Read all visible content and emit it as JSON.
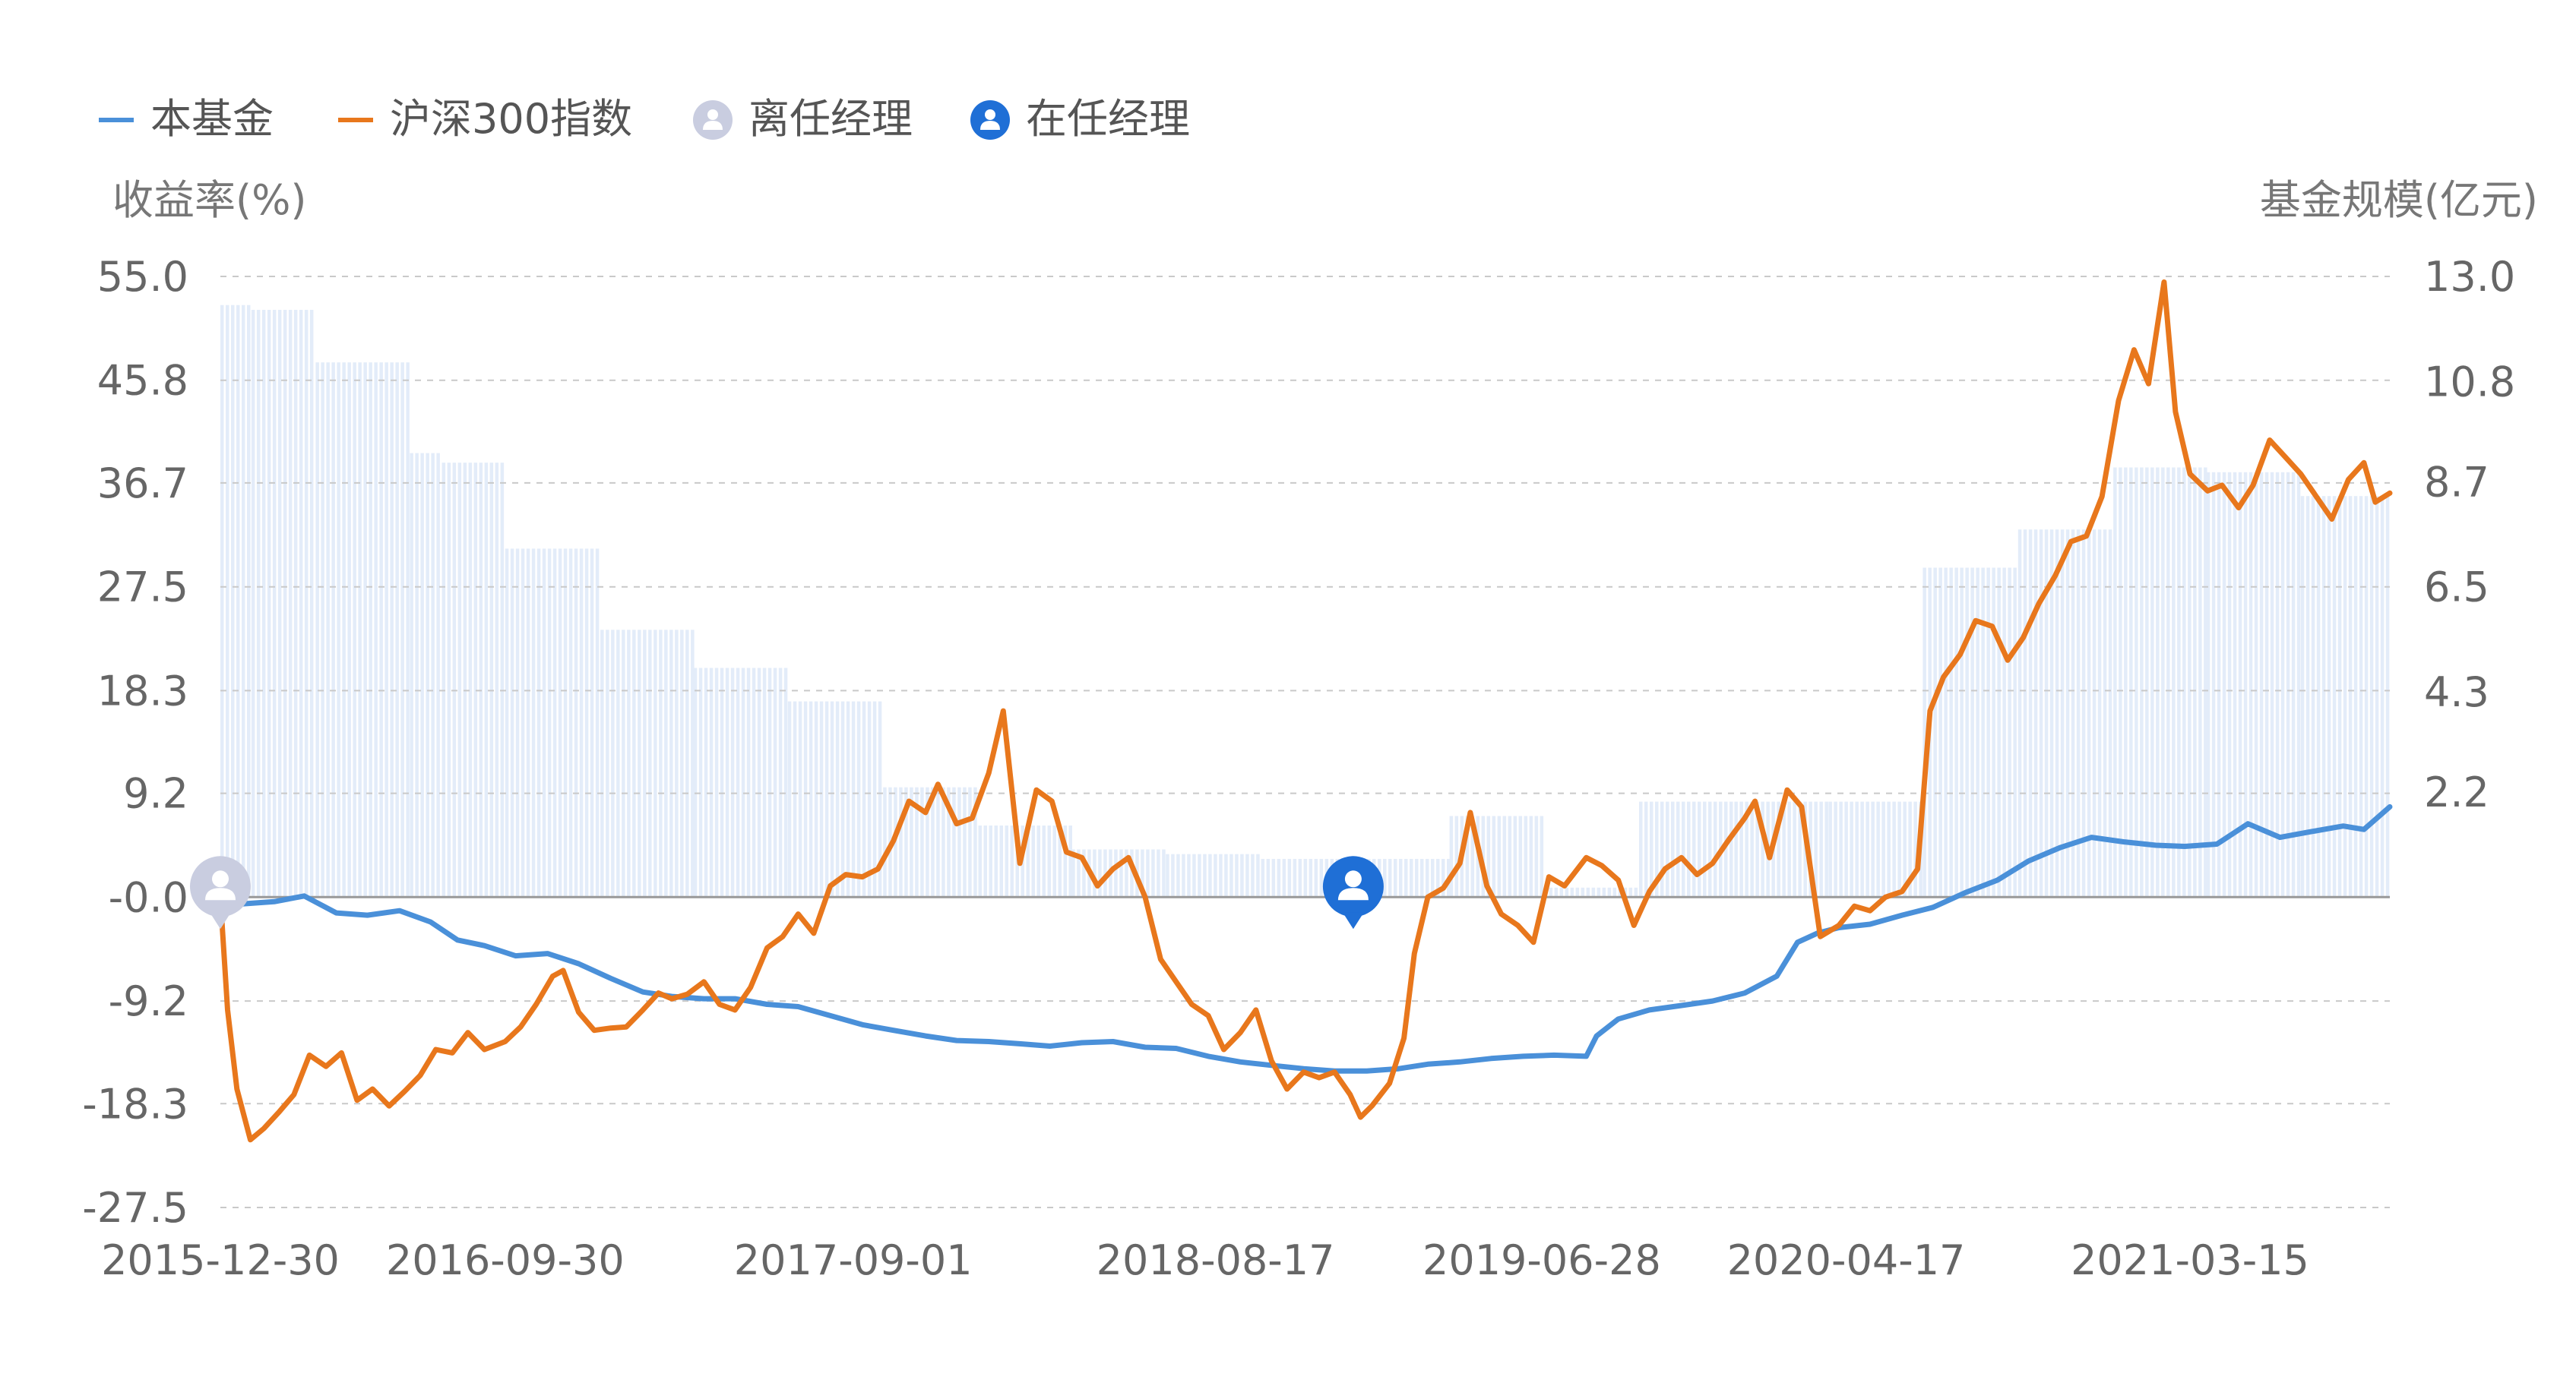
{
  "legend": {
    "fund": "本基金",
    "index": "沪深300指数",
    "former_manager": "离任经理",
    "current_manager": "在任经理"
  },
  "axes": {
    "left_title": "收益率(%)",
    "right_title": "基金规模(亿元)"
  },
  "colors": {
    "fund": "#4a90d9",
    "index": "#e8771c",
    "scale_bar": "#e3ecf9",
    "grid": "#c9c9c9",
    "text": "#666666",
    "former_manager": "#c9cde0",
    "current_manager": "#1f6fd6"
  },
  "chart_data": {
    "type": "line",
    "title": "",
    "x_ticks": [
      "2015-12-30",
      "2016-09-30",
      "2017-09-01",
      "2018-08-17",
      "2019-06-28",
      "2020-04-17",
      "2021-03-15"
    ],
    "x_range": [
      "2015-12-30",
      "2021-09-24"
    ],
    "y_left": {
      "label": "收益率(%)",
      "range": [
        -27.5,
        55.0
      ],
      "ticks": [
        "55.0",
        "45.8",
        "36.7",
        "27.5",
        "18.3",
        "9.2",
        "-0.0",
        "-9.2",
        "-18.3",
        "-27.5"
      ]
    },
    "y_right": {
      "label": "基金规模(亿元)",
      "range": [
        0,
        13.0
      ],
      "ticks": [
        "13.0",
        "10.8",
        "8.7",
        "6.5",
        "4.3",
        "2.2"
      ]
    },
    "grid": true,
    "legend_position": "top-left",
    "series": [
      {
        "name": "本基金",
        "axis": "left",
        "points": [
          [
            "2015-12-30",
            0.0
          ],
          [
            "2016-01-20",
            -0.6
          ],
          [
            "2016-02-20",
            -0.4
          ],
          [
            "2016-03-20",
            0.1
          ],
          [
            "2016-04-20",
            -1.4
          ],
          [
            "2016-05-20",
            -1.6
          ],
          [
            "2016-06-20",
            -1.2
          ],
          [
            "2016-07-20",
            -2.2
          ],
          [
            "2016-08-15",
            -3.8
          ],
          [
            "2016-09-10",
            -4.3
          ],
          [
            "2016-10-10",
            -5.2
          ],
          [
            "2016-11-10",
            -5.0
          ],
          [
            "2016-12-10",
            -5.9
          ],
          [
            "2017-01-10",
            -7.2
          ],
          [
            "2017-02-10",
            -8.4
          ],
          [
            "2017-03-10",
            -8.8
          ],
          [
            "2017-04-10",
            -9.0
          ],
          [
            "2017-05-10",
            -9.0
          ],
          [
            "2017-06-10",
            -9.5
          ],
          [
            "2017-07-10",
            -9.7
          ],
          [
            "2017-08-10",
            -10.5
          ],
          [
            "2017-09-10",
            -11.3
          ],
          [
            "2017-10-10",
            -11.8
          ],
          [
            "2017-11-10",
            -12.3
          ],
          [
            "2017-12-10",
            -12.7
          ],
          [
            "2018-01-10",
            -12.8
          ],
          [
            "2018-02-10",
            -13.0
          ],
          [
            "2018-03-10",
            -13.2
          ],
          [
            "2018-04-10",
            -12.9
          ],
          [
            "2018-05-10",
            -12.8
          ],
          [
            "2018-06-10",
            -13.3
          ],
          [
            "2018-07-10",
            -13.4
          ],
          [
            "2018-08-10",
            -14.1
          ],
          [
            "2018-09-10",
            -14.6
          ],
          [
            "2018-10-10",
            -14.9
          ],
          [
            "2018-11-10",
            -15.2
          ],
          [
            "2018-12-10",
            -15.4
          ],
          [
            "2019-01-10",
            -15.4
          ],
          [
            "2019-02-10",
            -15.2
          ],
          [
            "2019-03-10",
            -14.8
          ],
          [
            "2019-04-10",
            -14.6
          ],
          [
            "2019-05-10",
            -14.3
          ],
          [
            "2019-06-10",
            -14.1
          ],
          [
            "2019-07-10",
            -14.0
          ],
          [
            "2019-08-10",
            -14.1
          ],
          [
            "2019-08-20",
            -12.3
          ],
          [
            "2019-09-10",
            -10.8
          ],
          [
            "2019-10-10",
            -10.0
          ],
          [
            "2019-11-10",
            -9.6
          ],
          [
            "2019-12-10",
            -9.2
          ],
          [
            "2020-01-10",
            -8.5
          ],
          [
            "2020-02-10",
            -7.0
          ],
          [
            "2020-03-01",
            -4.0
          ],
          [
            "2020-03-20",
            -3.2
          ],
          [
            "2020-04-10",
            -2.7
          ],
          [
            "2020-05-10",
            -2.4
          ],
          [
            "2020-06-10",
            -1.6
          ],
          [
            "2020-07-10",
            -0.9
          ],
          [
            "2020-08-10",
            0.4
          ],
          [
            "2020-09-10",
            1.5
          ],
          [
            "2020-10-10",
            3.2
          ],
          [
            "2020-11-10",
            4.4
          ],
          [
            "2020-12-10",
            5.3
          ],
          [
            "2021-01-10",
            4.9
          ],
          [
            "2021-02-10",
            4.6
          ],
          [
            "2021-03-10",
            4.5
          ],
          [
            "2021-04-10",
            4.7
          ],
          [
            "2021-05-10",
            6.5
          ],
          [
            "2021-06-10",
            5.3
          ],
          [
            "2021-07-10",
            5.8
          ],
          [
            "2021-08-10",
            6.3
          ],
          [
            "2021-08-30",
            6.0
          ],
          [
            "2021-09-24",
            8.0
          ]
        ]
      },
      {
        "name": "沪深300指数",
        "axis": "left",
        "points": [
          [
            "2015-12-30",
            0.0
          ],
          [
            "2016-01-06",
            -10.0
          ],
          [
            "2016-01-15",
            -17.0
          ],
          [
            "2016-01-28",
            -21.5
          ],
          [
            "2016-02-10",
            -20.5
          ],
          [
            "2016-02-25",
            -19.0
          ],
          [
            "2016-03-10",
            -17.5
          ],
          [
            "2016-03-25",
            -14.0
          ],
          [
            "2016-04-10",
            -15.0
          ],
          [
            "2016-04-25",
            -13.8
          ],
          [
            "2016-05-10",
            -18.0
          ],
          [
            "2016-05-25",
            -17.0
          ],
          [
            "2016-06-10",
            -18.5
          ],
          [
            "2016-06-25",
            -17.2
          ],
          [
            "2016-07-10",
            -15.8
          ],
          [
            "2016-07-25",
            -13.5
          ],
          [
            "2016-08-10",
            -13.8
          ],
          [
            "2016-08-25",
            -12.0
          ],
          [
            "2016-09-10",
            -13.5
          ],
          [
            "2016-09-30",
            -12.8
          ],
          [
            "2016-10-15",
            -11.5
          ],
          [
            "2016-10-30",
            -9.5
          ],
          [
            "2016-11-15",
            -7.0
          ],
          [
            "2016-11-25",
            -6.5
          ],
          [
            "2016-12-10",
            -10.2
          ],
          [
            "2016-12-25",
            -11.8
          ],
          [
            "2017-01-10",
            -11.6
          ],
          [
            "2017-01-25",
            -11.5
          ],
          [
            "2017-02-10",
            -10.0
          ],
          [
            "2017-02-25",
            -8.5
          ],
          [
            "2017-03-10",
            -9.0
          ],
          [
            "2017-03-25",
            -8.6
          ],
          [
            "2017-04-10",
            -7.5
          ],
          [
            "2017-04-25",
            -9.5
          ],
          [
            "2017-05-10",
            -10.0
          ],
          [
            "2017-05-25",
            -8.0
          ],
          [
            "2017-06-10",
            -4.5
          ],
          [
            "2017-06-25",
            -3.5
          ],
          [
            "2017-07-10",
            -1.5
          ],
          [
            "2017-07-25",
            -3.2
          ],
          [
            "2017-08-10",
            1.0
          ],
          [
            "2017-08-25",
            2.0
          ],
          [
            "2017-09-10",
            1.8
          ],
          [
            "2017-09-25",
            2.5
          ],
          [
            "2017-10-10",
            5.0
          ],
          [
            "2017-10-25",
            8.5
          ],
          [
            "2017-11-10",
            7.5
          ],
          [
            "2017-11-22",
            10.0
          ],
          [
            "2017-12-10",
            6.5
          ],
          [
            "2017-12-25",
            7.0
          ],
          [
            "2018-01-10",
            11.0
          ],
          [
            "2018-01-24",
            16.5
          ],
          [
            "2018-02-09",
            3.0
          ],
          [
            "2018-02-25",
            9.5
          ],
          [
            "2018-03-12",
            8.5
          ],
          [
            "2018-03-26",
            4.0
          ],
          [
            "2018-04-10",
            3.5
          ],
          [
            "2018-04-25",
            1.0
          ],
          [
            "2018-05-10",
            2.5
          ],
          [
            "2018-05-25",
            3.5
          ],
          [
            "2018-06-10",
            0.0
          ],
          [
            "2018-06-25",
            -5.5
          ],
          [
            "2018-07-10",
            -7.5
          ],
          [
            "2018-07-25",
            -9.5
          ],
          [
            "2018-08-10",
            -10.5
          ],
          [
            "2018-08-25",
            -13.5
          ],
          [
            "2018-09-10",
            -12.0
          ],
          [
            "2018-09-25",
            -10.0
          ],
          [
            "2018-10-10",
            -14.5
          ],
          [
            "2018-10-25",
            -17.0
          ],
          [
            "2018-11-10",
            -15.5
          ],
          [
            "2018-11-25",
            -16.0
          ],
          [
            "2018-12-10",
            -15.5
          ],
          [
            "2018-12-25",
            -17.5
          ],
          [
            "2019-01-04",
            -19.5
          ],
          [
            "2019-01-15",
            -18.5
          ],
          [
            "2019-02-01",
            -16.5
          ],
          [
            "2019-02-15",
            -12.5
          ],
          [
            "2019-02-25",
            -5.0
          ],
          [
            "2019-03-10",
            0.0
          ],
          [
            "2019-03-25",
            0.8
          ],
          [
            "2019-04-10",
            3.0
          ],
          [
            "2019-04-20",
            7.5
          ],
          [
            "2019-05-06",
            1.0
          ],
          [
            "2019-05-20",
            -1.5
          ],
          [
            "2019-06-05",
            -2.5
          ],
          [
            "2019-06-20",
            -4.0
          ],
          [
            "2019-07-05",
            1.8
          ],
          [
            "2019-07-20",
            1.0
          ],
          [
            "2019-08-10",
            3.5
          ],
          [
            "2019-08-25",
            2.8
          ],
          [
            "2019-09-10",
            1.5
          ],
          [
            "2019-09-25",
            -2.5
          ],
          [
            "2019-10-10",
            0.5
          ],
          [
            "2019-10-25",
            2.5
          ],
          [
            "2019-11-10",
            3.5
          ],
          [
            "2019-11-25",
            2.0
          ],
          [
            "2019-12-10",
            3.0
          ],
          [
            "2019-12-25",
            5.0
          ],
          [
            "2020-01-10",
            7.0
          ],
          [
            "2020-01-20",
            8.5
          ],
          [
            "2020-02-03",
            3.5
          ],
          [
            "2020-02-20",
            9.5
          ],
          [
            "2020-03-05",
            8.0
          ],
          [
            "2020-03-23",
            -3.5
          ],
          [
            "2020-04-10",
            -2.5
          ],
          [
            "2020-04-25",
            -0.8
          ],
          [
            "2020-05-10",
            -1.2
          ],
          [
            "2020-05-25",
            0.0
          ],
          [
            "2020-06-10",
            0.5
          ],
          [
            "2020-06-25",
            2.5
          ],
          [
            "2020-07-07",
            16.5
          ],
          [
            "2020-07-20",
            19.5
          ],
          [
            "2020-08-05",
            21.5
          ],
          [
            "2020-08-20",
            24.5
          ],
          [
            "2020-09-05",
            24.0
          ],
          [
            "2020-09-20",
            21.0
          ],
          [
            "2020-10-05",
            23.0
          ],
          [
            "2020-10-20",
            26.0
          ],
          [
            "2020-11-05",
            28.5
          ],
          [
            "2020-11-20",
            31.5
          ],
          [
            "2020-12-05",
            32.0
          ],
          [
            "2020-12-20",
            35.5
          ],
          [
            "2021-01-05",
            44.0
          ],
          [
            "2021-01-20",
            48.5
          ],
          [
            "2021-02-03",
            45.5
          ],
          [
            "2021-02-18",
            54.5
          ],
          [
            "2021-03-01",
            43.0
          ],
          [
            "2021-03-15",
            37.5
          ],
          [
            "2021-04-01",
            36.0
          ],
          [
            "2021-04-15",
            36.5
          ],
          [
            "2021-05-01",
            34.5
          ],
          [
            "2021-05-15",
            36.5
          ],
          [
            "2021-05-31",
            40.5
          ],
          [
            "2021-06-15",
            39.0
          ],
          [
            "2021-06-30",
            37.5
          ],
          [
            "2021-07-15",
            35.5
          ],
          [
            "2021-07-30",
            33.5
          ],
          [
            "2021-08-15",
            37.0
          ],
          [
            "2021-08-30",
            38.5
          ],
          [
            "2021-09-10",
            35.0
          ],
          [
            "2021-09-24",
            35.8
          ]
        ]
      }
    ],
    "bar_series": {
      "name": "基金规模(亿元)",
      "axis": "right",
      "steps": [
        [
          "2015-12-30",
          12.4
        ],
        [
          "2016-01-29",
          12.3
        ],
        [
          "2016-03-31",
          11.2
        ],
        [
          "2016-06-30",
          9.3
        ],
        [
          "2016-07-31",
          9.1
        ],
        [
          "2016-09-30",
          7.3
        ],
        [
          "2016-12-31",
          5.6
        ],
        [
          "2017-03-31",
          4.8
        ],
        [
          "2017-06-30",
          4.1
        ],
        [
          "2017-09-30",
          2.3
        ],
        [
          "2017-12-31",
          1.5
        ],
        [
          "2018-03-31",
          1.0
        ],
        [
          "2018-06-30",
          0.9
        ],
        [
          "2018-09-30",
          0.8
        ],
        [
          "2018-12-31",
          0.8
        ],
        [
          "2019-03-31",
          1.7
        ],
        [
          "2019-06-30",
          0.2
        ],
        [
          "2019-09-30",
          2.0
        ],
        [
          "2019-12-31",
          2.0
        ],
        [
          "2020-03-31",
          2.0
        ],
        [
          "2020-06-30",
          6.9
        ],
        [
          "2020-09-30",
          7.7
        ],
        [
          "2020-12-31",
          9.0
        ],
        [
          "2021-03-31",
          8.9
        ],
        [
          "2021-06-30",
          8.4
        ],
        [
          "2021-09-24",
          8.0
        ]
      ]
    },
    "markers": [
      {
        "type": "former_manager",
        "date": "2015-12-30",
        "value": 0.0
      },
      {
        "type": "current_manager",
        "date": "2018-12-28",
        "value": 0.0
      }
    ]
  }
}
